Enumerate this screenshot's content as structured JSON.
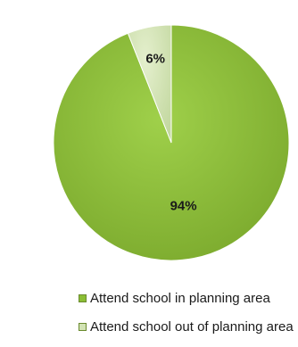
{
  "chart_data": {
    "type": "pie",
    "categories": [
      "Attend school in planning area",
      "Attend school out of planning area"
    ],
    "values": [
      94,
      6
    ],
    "labels": [
      "94%",
      "6%"
    ],
    "colors": [
      "#8bbe35",
      "#d2e3b4"
    ],
    "legend_position": "bottom",
    "title": ""
  },
  "legend": {
    "items": [
      {
        "label": "Attend school in planning area"
      },
      {
        "label": "Attend school out of planning area"
      }
    ]
  }
}
